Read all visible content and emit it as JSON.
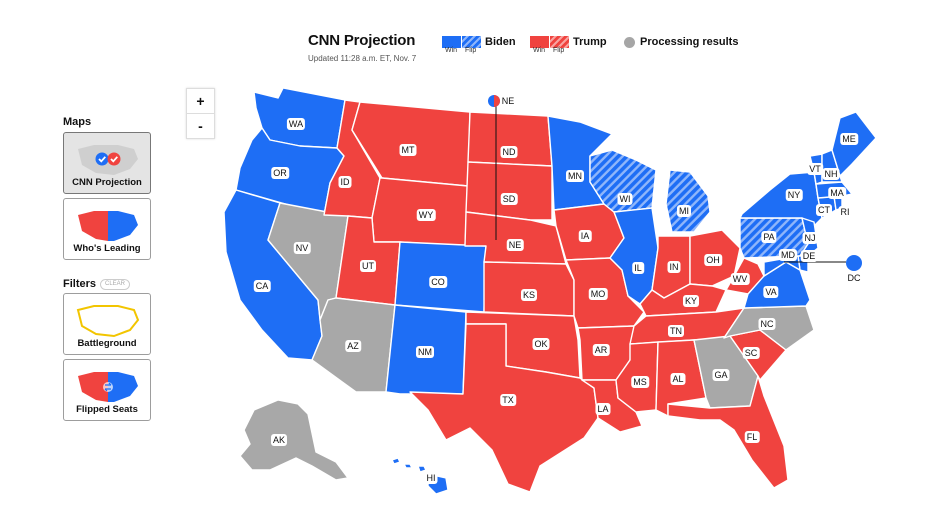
{
  "header": {
    "title": "CNN Projection",
    "updated": "Updated 11:28 a.m. ET, Nov. 7"
  },
  "legend": {
    "biden": {
      "name": "Biden",
      "win": "Win",
      "flip": "Flip"
    },
    "trump": {
      "name": "Trump",
      "win": "Win",
      "flip": "Flip"
    },
    "processing": "Processing results"
  },
  "colors": {
    "biden": "#1e6ef5",
    "trump": "#f0433f",
    "processing": "#a8a8a8"
  },
  "sidebar": {
    "maps_heading": "Maps",
    "maps": [
      {
        "label": "CNN Projection",
        "active": true
      },
      {
        "label": "Who's Leading",
        "active": false
      }
    ],
    "filters_heading": "Filters",
    "clear": "CLEAR",
    "filters": [
      {
        "label": "Battleground"
      },
      {
        "label": "Flipped Seats"
      }
    ]
  },
  "zoom": {
    "in": "+",
    "out": "-"
  },
  "states": {
    "WA": "WA",
    "OR": "OR",
    "CA": "CA",
    "NV": "NV",
    "ID": "ID",
    "MT": "MT",
    "WY": "WY",
    "UT": "UT",
    "AZ": "AZ",
    "CO": "CO",
    "NM": "NM",
    "ND": "ND",
    "SD": "SD",
    "NE": "NE",
    "KS": "KS",
    "OK": "OK",
    "TX": "TX",
    "MN": "MN",
    "IA": "IA",
    "MO": "MO",
    "AR": "AR",
    "LA": "LA",
    "WI": "WI",
    "IL": "IL",
    "MS": "MS",
    "MI": "MI",
    "IN": "IN",
    "KY": "KY",
    "TN": "TN",
    "AL": "AL",
    "OH": "OH",
    "WV": "WV",
    "GA": "GA",
    "FL": "FL",
    "SC": "SC",
    "NC": "NC",
    "VA": "VA",
    "PA": "PA",
    "NY": "NY",
    "VT": "VT",
    "NH": "NH",
    "ME": "ME",
    "MA": "MA",
    "RI": "RI",
    "CT": "CT",
    "NJ": "NJ",
    "DE": "DE",
    "MD": "MD",
    "DC": "DC",
    "AK": "AK",
    "HI": "HI"
  }
}
